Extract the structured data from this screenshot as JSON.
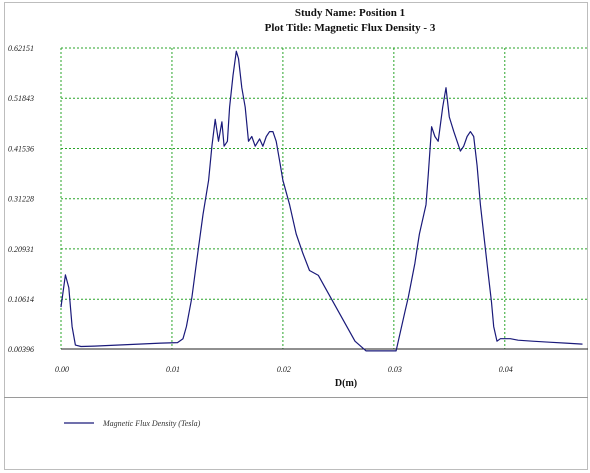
{
  "titles": {
    "line1": "Study Name: Position 1",
    "line2": "Plot Title: Magnetic Flux Density - 3"
  },
  "colors": {
    "series": "#1a1a7a",
    "grid": "#2aa52a",
    "axis": "#222222"
  },
  "chart_data": {
    "type": "line",
    "title": "Study Name: Position 1",
    "subtitle": "Plot Title: Magnetic Flux Density - 3",
    "xlabel": "D(m)",
    "ylabel": "",
    "xlim": [
      0.0,
      0.0475
    ],
    "ylim": [
      0.00396,
      0.62151
    ],
    "xticks": [
      0.0,
      0.01,
      0.02,
      0.03,
      0.04
    ],
    "xtick_labels": [
      "0.00",
      "0.01",
      "0.02",
      "0.03",
      "0.04"
    ],
    "yticks": [
      0.00396,
      0.10614,
      0.20931,
      0.31228,
      0.41536,
      0.51843,
      0.62151
    ],
    "ytick_labels": [
      "0.00396",
      "0.10614",
      "0.20931",
      "0.31228",
      "0.41536",
      "0.51843",
      "0.62151"
    ],
    "grid": true,
    "legend_position": "bottom-left",
    "series": [
      {
        "name": "Magnetic Flux Density (Tesla)",
        "x": [
          0.0,
          0.0004,
          0.0007,
          0.001,
          0.0013,
          0.0018,
          0.003,
          0.006,
          0.009,
          0.0105,
          0.011,
          0.0113,
          0.0118,
          0.0122,
          0.0128,
          0.0133,
          0.0136,
          0.0139,
          0.0142,
          0.0145,
          0.0147,
          0.015,
          0.0152,
          0.0155,
          0.0158,
          0.016,
          0.0163,
          0.0166,
          0.0169,
          0.0172,
          0.0175,
          0.0179,
          0.0182,
          0.0185,
          0.0188,
          0.0191,
          0.0194,
          0.0197,
          0.02,
          0.0206,
          0.0212,
          0.0218,
          0.0224,
          0.0232,
          0.0238,
          0.0265,
          0.0275,
          0.028,
          0.0284,
          0.0288,
          0.0292,
          0.0296,
          0.0302,
          0.0306,
          0.031,
          0.0313,
          0.0316,
          0.0319,
          0.0321,
          0.0323,
          0.0325,
          0.0327,
          0.0329,
          0.0331,
          0.0334,
          0.0337,
          0.034,
          0.0344,
          0.0347,
          0.035,
          0.0354,
          0.0357,
          0.036,
          0.0363,
          0.0366,
          0.0369,
          0.0372,
          0.0375,
          0.0378,
          0.0382,
          0.0385,
          0.0388,
          0.039,
          0.0393,
          0.0396,
          0.0405,
          0.0412,
          0.0425,
          0.044,
          0.0455,
          0.047
        ],
        "values": [
          0.09,
          0.156,
          0.13,
          0.05,
          0.012,
          0.009,
          0.01,
          0.013,
          0.016,
          0.017,
          0.025,
          0.05,
          0.11,
          0.18,
          0.28,
          0.35,
          0.42,
          0.475,
          0.43,
          0.47,
          0.42,
          0.43,
          0.5,
          0.565,
          0.615,
          0.6,
          0.54,
          0.5,
          0.43,
          0.44,
          0.42,
          0.435,
          0.42,
          0.44,
          0.45,
          0.45,
          0.43,
          0.39,
          0.35,
          0.3,
          0.24,
          0.2,
          0.165,
          0.155,
          0.13,
          0.02,
          0.0,
          0.0,
          0.0,
          0.0,
          0.0,
          0.0,
          0.0,
          0.04,
          0.08,
          0.11,
          0.145,
          0.18,
          0.21,
          0.24,
          0.26,
          0.28,
          0.3,
          0.36,
          0.46,
          0.44,
          0.43,
          0.5,
          0.54,
          0.48,
          0.45,
          0.43,
          0.41,
          0.42,
          0.44,
          0.45,
          0.44,
          0.38,
          0.3,
          0.22,
          0.16,
          0.1,
          0.05,
          0.02,
          0.025,
          0.025,
          0.022,
          0.02,
          0.018,
          0.016,
          0.014
        ]
      }
    ]
  }
}
